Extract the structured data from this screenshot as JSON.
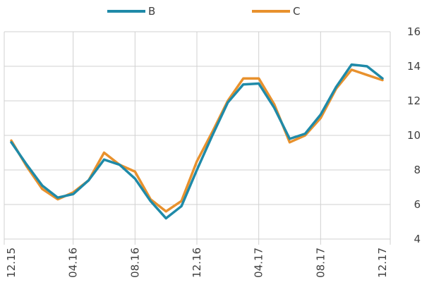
{
  "chart_data": {
    "type": "line",
    "x": [
      "12.15",
      "01.16",
      "02.16",
      "03.16",
      "04.16",
      "05.16",
      "06.16",
      "07.16",
      "08.16",
      "09.16",
      "10.16",
      "11.16",
      "12.16",
      "01.17",
      "02.17",
      "03.17",
      "04.17",
      "05.17",
      "06.17",
      "07.17",
      "08.17",
      "09.17",
      "10.17",
      "11.17",
      "12.17"
    ],
    "xticks": [
      "12.15",
      "04.16",
      "08.16",
      "12.16",
      "04.17",
      "08.17",
      "12.17"
    ],
    "series": [
      {
        "name": "B",
        "color": "#1f8aa8",
        "values": [
          9.6,
          8.3,
          7.1,
          6.4,
          6.6,
          7.4,
          8.6,
          8.3,
          7.5,
          6.2,
          5.2,
          5.9,
          8.0,
          10.0,
          11.9,
          12.95,
          13.0,
          11.6,
          9.8,
          10.1,
          11.2,
          12.8,
          14.1,
          14.0,
          13.3
        ]
      },
      {
        "name": "C",
        "color": "#e8912d",
        "values": [
          9.7,
          8.2,
          6.9,
          6.3,
          6.7,
          7.4,
          9.0,
          8.3,
          7.9,
          6.3,
          5.6,
          6.2,
          8.5,
          10.2,
          12.0,
          13.3,
          13.3,
          11.8,
          9.6,
          10.0,
          11.0,
          12.7,
          13.8,
          13.5,
          13.2
        ]
      }
    ],
    "yticks": [
      "4",
      "6",
      "8",
      "10",
      "12",
      "14",
      "16"
    ],
    "ylim": [
      4,
      16
    ],
    "y_axis_side": "right",
    "grid": true,
    "legend_position": "top-center",
    "title": "",
    "xlabel": "",
    "ylabel": ""
  }
}
